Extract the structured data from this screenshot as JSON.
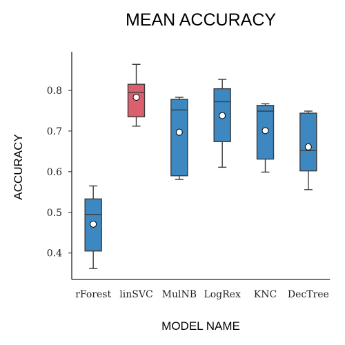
{
  "chart_data": {
    "type": "box",
    "title": "MEAN ACCURACY",
    "xlabel": "MODEL NAME",
    "ylabel": "ACCURACY",
    "ylim": [
      0.335,
      0.895
    ],
    "yticks": [
      0.4,
      0.5,
      0.6,
      0.7,
      0.8
    ],
    "ytick_labels": [
      "0.4",
      "0.5",
      "0.6",
      "0.7",
      "0.8"
    ],
    "grid": false,
    "legend": "none",
    "categories": [
      "rForest",
      "linSVC",
      "MulNB",
      "LogRex",
      "KNC",
      "DecTree"
    ],
    "boxes": [
      {
        "name": "rForest",
        "whisker_low": 0.362,
        "q1": 0.405,
        "median": 0.495,
        "q3": 0.533,
        "whisker_high": 0.565,
        "mean": 0.471,
        "color": "#3e88c2"
      },
      {
        "name": "linSVC",
        "whisker_low": 0.712,
        "q1": 0.735,
        "median": 0.795,
        "q3": 0.815,
        "whisker_high": 0.864,
        "mean": 0.783,
        "color": "#dc5f6e"
      },
      {
        "name": "MulNB",
        "whisker_low": 0.581,
        "q1": 0.59,
        "median": 0.752,
        "q3": 0.778,
        "whisker_high": 0.783,
        "mean": 0.697,
        "color": "#3e88c2"
      },
      {
        "name": "LogRex",
        "whisker_low": 0.611,
        "q1": 0.674,
        "median": 0.772,
        "q3": 0.804,
        "whisker_high": 0.827,
        "mean": 0.738,
        "color": "#3e88c2"
      },
      {
        "name": "KNC",
        "whisker_low": 0.599,
        "q1": 0.631,
        "median": 0.749,
        "q3": 0.763,
        "whisker_high": 0.767,
        "mean": 0.701,
        "color": "#3e88c2"
      },
      {
        "name": "DecTree",
        "whisker_low": 0.556,
        "q1": 0.602,
        "median": 0.652,
        "q3": 0.744,
        "whisker_high": 0.749,
        "mean": 0.661,
        "color": "#3e88c2"
      }
    ]
  }
}
